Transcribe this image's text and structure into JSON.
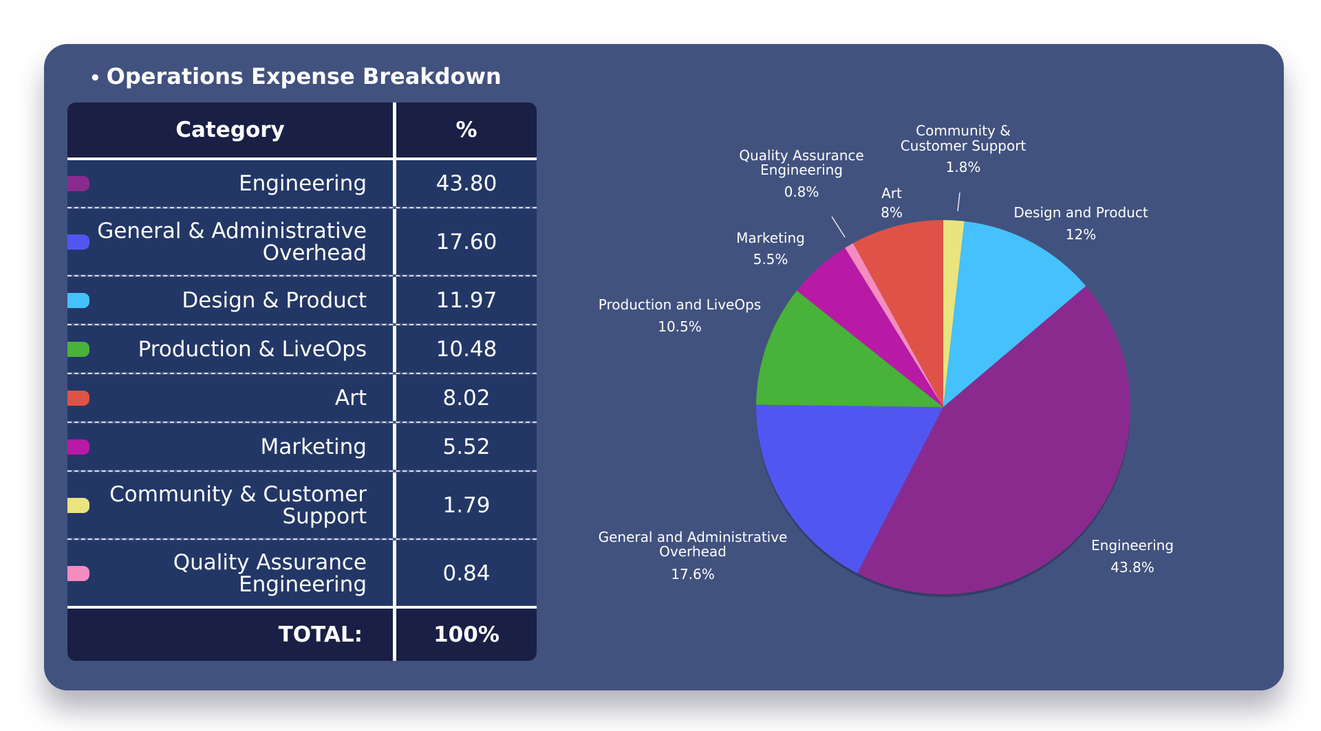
{
  "title": "Operations Expense Breakdown",
  "table": {
    "headers": [
      "Category",
      "%"
    ],
    "rows": [
      {
        "category": "Engineering",
        "value": "43.80",
        "color": "#8b2a8e"
      },
      {
        "category": "General & Administrative Overhead",
        "value": "17.60",
        "color": "#5256f0"
      },
      {
        "category": "Design & Product",
        "value": "11.97",
        "color": "#45c1fb"
      },
      {
        "category": "Production & LiveOps",
        "value": "10.48",
        "color": "#48b23a"
      },
      {
        "category": "Art",
        "value": "8.02",
        "color": "#df5248"
      },
      {
        "category": "Marketing",
        "value": "5.52",
        "color": "#b81aa6"
      },
      {
        "category": "Community & Customer Support",
        "value": "1.79",
        "color": "#e9e47e"
      },
      {
        "category": "Quality Assurance Engineering",
        "value": "0.84",
        "color": "#f48cc0"
      }
    ],
    "total_label": "TOTAL:",
    "total_value": "100%"
  },
  "chart_data": {
    "type": "pie",
    "title": "Operations Expense Breakdown",
    "slices": [
      {
        "label": "Community & Customer Support",
        "value": 1.8,
        "display": "1.8%",
        "color": "#e9e47e"
      },
      {
        "label": "Design and Product",
        "value": 12,
        "display": "12%",
        "color": "#45c1fb"
      },
      {
        "label": "Engineering",
        "value": 43.8,
        "display": "43.8%",
        "color": "#8b2a8e"
      },
      {
        "label": "General and Administrative Overhead",
        "value": 17.6,
        "display": "17.6%",
        "color": "#5256f0"
      },
      {
        "label": "Production and LiveOps",
        "value": 10.5,
        "display": "10.5%",
        "color": "#48b23a"
      },
      {
        "label": "Marketing",
        "value": 5.5,
        "display": "5.5%",
        "color": "#b81aa6"
      },
      {
        "label": "Quality Assurance Engineering",
        "value": 0.8,
        "display": "0.8%",
        "color": "#f48cc0"
      },
      {
        "label": "Art",
        "value": 8,
        "display": "8%",
        "color": "#df5248"
      }
    ]
  }
}
